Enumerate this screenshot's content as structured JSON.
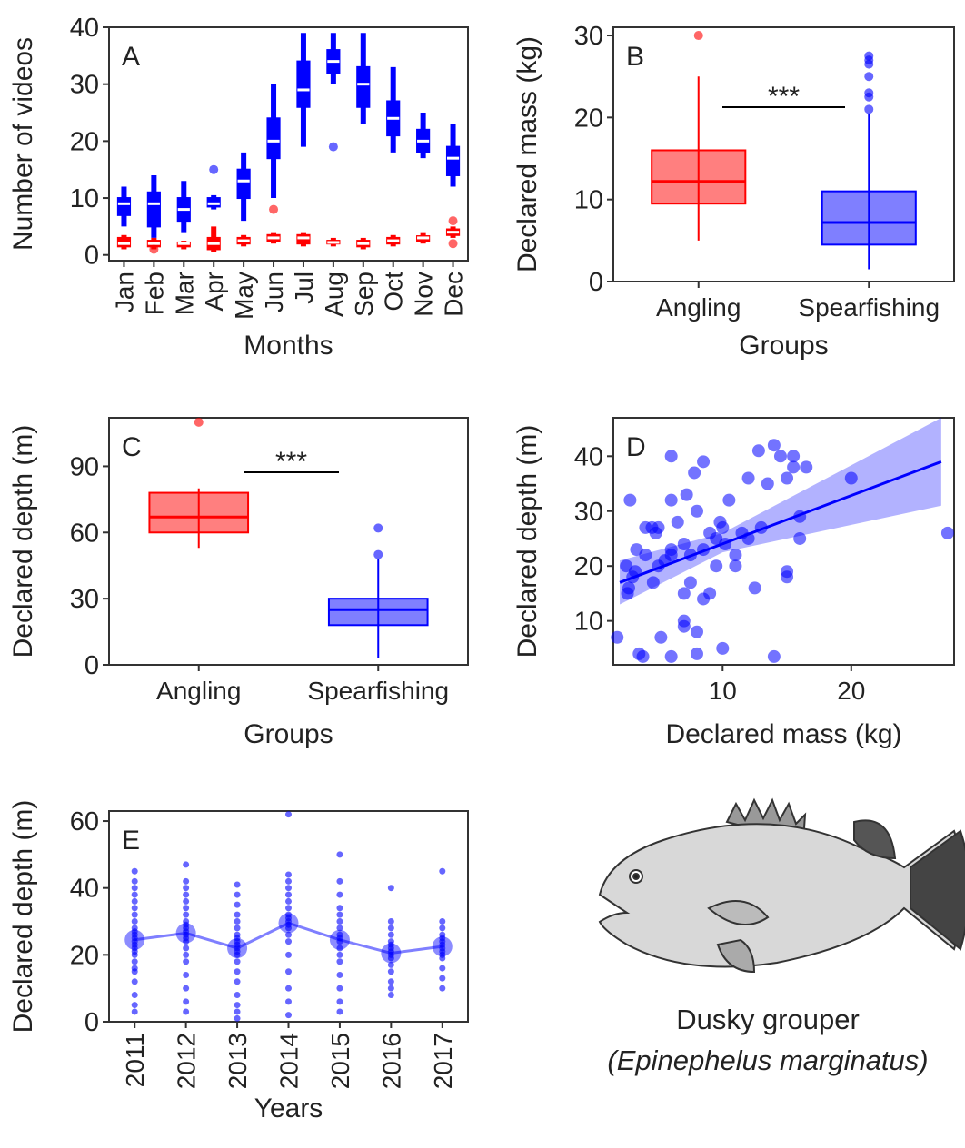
{
  "chart_data": [
    {
      "type": "box",
      "panel_label": "A",
      "xlabel": "Months",
      "ylabel": "Number of videos",
      "rotate_x_labels": true,
      "categories": [
        "Jan",
        "Feb",
        "Mar",
        "Apr",
        "May",
        "Jun",
        "Jul",
        "Aug",
        "Sep",
        "Oct",
        "Nov",
        "Dec"
      ],
      "ylim": [
        -1,
        40
      ],
      "yticks": [
        0,
        10,
        20,
        30,
        40
      ],
      "series": [
        {
          "color": "#0000ff",
          "min": [
            5,
            3,
            4,
            8,
            6,
            10,
            19,
            30,
            23,
            18,
            17,
            12
          ],
          "q1": [
            7,
            5,
            6,
            8.5,
            10,
            17,
            26,
            32,
            26,
            21,
            18,
            14
          ],
          "median": [
            9,
            9,
            8,
            9,
            13,
            20,
            29,
            34,
            30,
            24,
            20,
            17
          ],
          "q3": [
            10,
            11,
            10,
            10,
            15,
            24,
            34,
            36,
            33,
            27,
            22,
            19
          ],
          "max": [
            12,
            14,
            13,
            10.5,
            18,
            30,
            39,
            39,
            39,
            33,
            25,
            23
          ],
          "outliers": [
            [],
            [],
            [],
            [
              15,
              2
            ],
            [],
            [],
            [],
            [
              19
            ],
            [],
            [],
            [],
            []
          ]
        },
        {
          "color": "#ff0000",
          "min": [
            1,
            1,
            1,
            0.5,
            1.5,
            2,
            1.5,
            1.5,
            1,
            1.5,
            2,
            3
          ],
          "q1": [
            1.5,
            1.5,
            1.5,
            1,
            2,
            2.5,
            2,
            2,
            1.5,
            2,
            2.5,
            3.5
          ],
          "median": [
            2,
            2,
            2,
            2,
            2.5,
            3,
            3,
            2.2,
            2,
            2.5,
            3,
            4
          ],
          "q3": [
            3,
            2.5,
            2.2,
            3,
            3,
            3.5,
            3.5,
            2.5,
            2.5,
            3,
            3.3,
            4.5
          ],
          "max": [
            3.5,
            3,
            2.5,
            5,
            3.5,
            4,
            4,
            3,
            3,
            3.5,
            4,
            5
          ],
          "outliers": [
            [],
            [
              1
            ],
            [],
            [],
            [],
            [
              8
            ],
            [],
            [],
            [],
            [],
            [],
            [
              6,
              2
            ]
          ]
        }
      ]
    },
    {
      "type": "box",
      "panel_label": "B",
      "xlabel": "Groups",
      "ylabel": "Declared mass (kg)",
      "annotation": "***",
      "categories": [
        "Angling",
        "Spearfishing"
      ],
      "ylim": [
        0,
        31
      ],
      "yticks": [
        0,
        10,
        20,
        30
      ],
      "series": [
        {
          "colors": [
            "#ff0000",
            "#0000ff"
          ],
          "min": [
            5,
            1.5
          ],
          "q1": [
            9.5,
            4.5
          ],
          "median": [
            12.2,
            7.2
          ],
          "q3": [
            16,
            11
          ],
          "max": [
            25,
            20.5
          ],
          "outliers": [
            [
              30
            ],
            [
              21,
              22.5,
              23,
              25,
              26.5,
              27,
              27.5
            ]
          ]
        }
      ]
    },
    {
      "type": "box",
      "panel_label": "C",
      "xlabel": "Groups",
      "ylabel": "Declared depth (m)",
      "annotation": "***",
      "categories": [
        "Angling",
        "Spearfishing"
      ],
      "ylim": [
        0,
        112
      ],
      "yticks": [
        0,
        30,
        60,
        90
      ],
      "series": [
        {
          "colors": [
            "#ff0000",
            "#0000ff"
          ],
          "min": [
            53,
            3
          ],
          "q1": [
            60,
            18
          ],
          "median": [
            67,
            25
          ],
          "q3": [
            78,
            30
          ],
          "max": [
            80,
            48
          ],
          "outliers": [
            [
              110
            ],
            [
              50,
              62
            ]
          ]
        }
      ]
    },
    {
      "type": "scatter",
      "panel_label": "D",
      "xlabel": "Declared mass (kg)",
      "ylabel": "Declared depth (m)",
      "color": "#0000ff",
      "xlim": [
        1.5,
        28
      ],
      "xticks": [
        10,
        20
      ],
      "ylim": [
        2,
        47
      ],
      "yticks": [
        10,
        20,
        30,
        40
      ],
      "x": [
        1.8,
        2.5,
        2.6,
        2.7,
        2.8,
        3,
        3.2,
        3.3,
        3.5,
        3.8,
        4,
        4,
        4.5,
        4.6,
        4.8,
        5,
        5,
        5.2,
        5.5,
        6,
        6,
        6,
        6,
        6,
        6.5,
        7,
        7,
        7,
        7,
        7.2,
        7.5,
        7.5,
        7.8,
        8,
        8,
        8,
        8.5,
        8.5,
        8.5,
        9,
        9,
        9.5,
        9.5,
        9.8,
        10,
        10,
        10.2,
        10.5,
        11,
        11,
        11.5,
        12,
        12,
        12.5,
        12.8,
        13,
        13.5,
        14,
        14,
        14.5,
        15,
        15,
        15,
        15.5,
        15.5,
        16,
        16,
        16.5,
        20,
        27.5
      ],
      "y": [
        7,
        20,
        15,
        16,
        32,
        18,
        19,
        23,
        4,
        3.5,
        22,
        27,
        27,
        17,
        26,
        27,
        20,
        7,
        21,
        3.5,
        23,
        32,
        40,
        22,
        28,
        10,
        9,
        15,
        24,
        33,
        22,
        17,
        37,
        30,
        4,
        8,
        39,
        14,
        23,
        26,
        15,
        25,
        20,
        28,
        5,
        27,
        24,
        32,
        22,
        20,
        26,
        36,
        25,
        16,
        41,
        27,
        35,
        42,
        3.5,
        40,
        19,
        18,
        36,
        38,
        40,
        25,
        29,
        38,
        36,
        26
      ],
      "fit": {
        "x": [
          2,
          27
        ],
        "y": [
          17,
          39
        ]
      },
      "ci": {
        "x": [
          2,
          10,
          27
        ],
        "lower": [
          13,
          22.5,
          31
        ],
        "upper": [
          21,
          26,
          47
        ]
      }
    },
    {
      "type": "strip",
      "panel_label": "E",
      "xlabel": "Years",
      "ylabel": "Declared depth (m)",
      "rotate_x_labels": true,
      "color": "#0000ff",
      "categories": [
        "2011",
        "2012",
        "2013",
        "2014",
        "2015",
        "2016",
        "2017"
      ],
      "ylim": [
        0,
        63
      ],
      "yticks": [
        0,
        20,
        40,
        60
      ],
      "means": [
        24.5,
        26.5,
        22,
        29.5,
        24.5,
        20.5,
        22.5
      ],
      "points": [
        [
          3,
          5,
          8,
          12,
          15,
          16,
          18,
          20,
          21,
          22,
          23,
          24,
          25,
          26,
          27,
          28,
          30,
          32,
          34,
          36,
          38,
          40,
          42,
          45
        ],
        [
          3,
          6,
          10,
          14,
          18,
          20,
          22,
          24,
          25,
          26,
          27,
          28,
          29,
          30,
          32,
          34,
          36,
          38,
          40,
          42,
          47
        ],
        [
          1,
          3,
          5,
          8,
          12,
          15,
          18,
          20,
          21,
          22,
          23,
          24,
          25,
          26,
          28,
          30,
          32,
          35,
          38,
          41
        ],
        [
          2,
          6,
          10,
          15,
          20,
          24,
          26,
          28,
          29,
          30,
          31,
          32,
          34,
          36,
          38,
          40,
          42,
          44,
          62
        ],
        [
          3,
          6,
          10,
          14,
          18,
          20,
          22,
          24,
          25,
          26,
          28,
          30,
          32,
          34,
          38,
          42,
          50
        ],
        [
          8,
          10,
          12,
          15,
          17,
          19,
          20,
          21,
          22,
          23,
          24,
          26,
          28,
          30,
          40
        ],
        [
          10,
          13,
          16,
          19,
          20,
          21,
          22,
          23,
          24,
          25,
          26,
          28,
          30,
          45
        ]
      ]
    }
  ],
  "figure_caption": {
    "common_name": "Dusky grouper",
    "scientific_name": "(Epinephelus marginatus)"
  }
}
